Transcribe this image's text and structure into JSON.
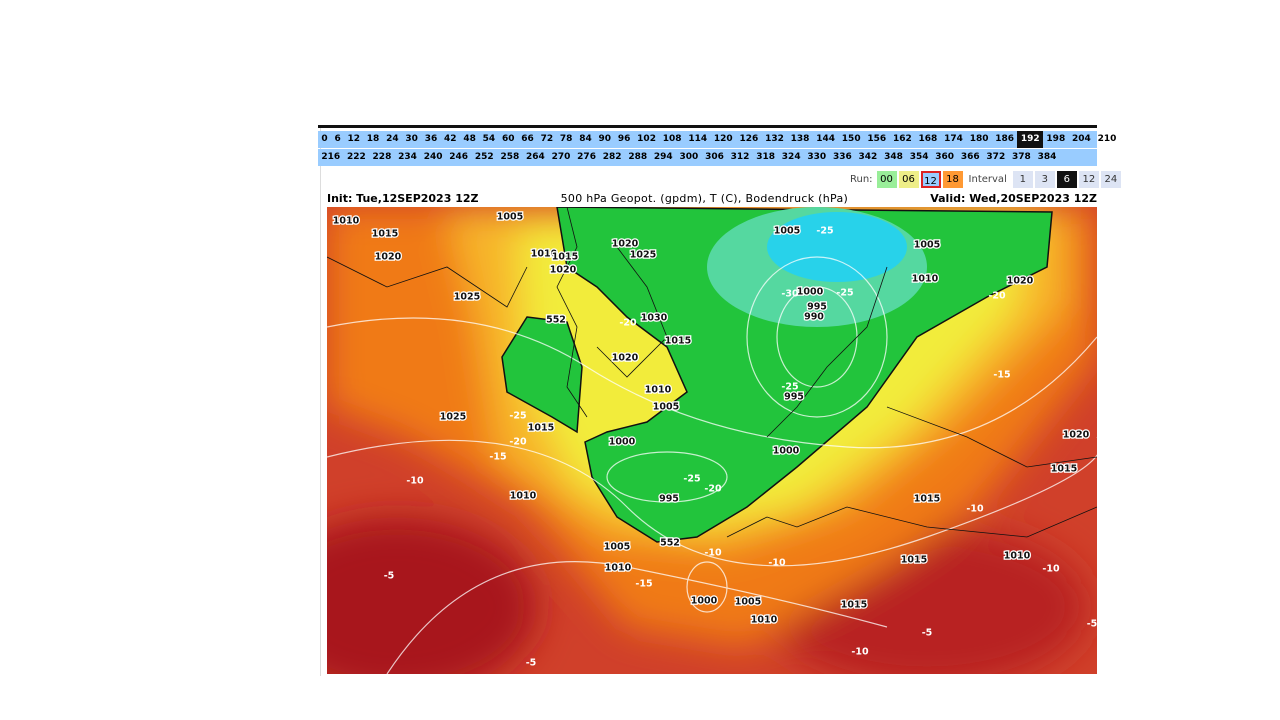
{
  "hours": {
    "row1": [
      {
        "label": "0"
      },
      {
        "label": "6"
      },
      {
        "label": "12"
      },
      {
        "label": "18"
      },
      {
        "label": "24"
      },
      {
        "label": "30"
      },
      {
        "label": "36"
      },
      {
        "label": "42"
      },
      {
        "label": "48"
      },
      {
        "label": "54"
      },
      {
        "label": "60"
      },
      {
        "label": "66"
      },
      {
        "label": "72"
      },
      {
        "label": "78"
      },
      {
        "label": "84"
      },
      {
        "label": "90"
      },
      {
        "label": "96"
      },
      {
        "label": "102"
      },
      {
        "label": "108"
      },
      {
        "label": "114"
      },
      {
        "label": "120"
      },
      {
        "label": "126"
      },
      {
        "label": "132"
      },
      {
        "label": "138"
      },
      {
        "label": "144"
      },
      {
        "label": "150"
      },
      {
        "label": "156"
      },
      {
        "label": "162"
      },
      {
        "label": "168"
      },
      {
        "label": "174"
      },
      {
        "label": "180"
      },
      {
        "label": "186"
      },
      {
        "label": "192",
        "selected": true
      },
      {
        "label": "198"
      },
      {
        "label": "204"
      },
      {
        "label": "210"
      }
    ],
    "row2": [
      {
        "label": "216"
      },
      {
        "label": "222"
      },
      {
        "label": "228"
      },
      {
        "label": "234"
      },
      {
        "label": "240"
      },
      {
        "label": "246"
      },
      {
        "label": "252"
      },
      {
        "label": "258"
      },
      {
        "label": "264"
      },
      {
        "label": "270"
      },
      {
        "label": "276"
      },
      {
        "label": "282"
      },
      {
        "label": "288"
      },
      {
        "label": "294"
      },
      {
        "label": "300"
      },
      {
        "label": "306"
      },
      {
        "label": "312"
      },
      {
        "label": "318"
      },
      {
        "label": "324"
      },
      {
        "label": "330"
      },
      {
        "label": "336"
      },
      {
        "label": "342"
      },
      {
        "label": "348"
      },
      {
        "label": "354"
      },
      {
        "label": "360"
      },
      {
        "label": "366"
      },
      {
        "label": "372"
      },
      {
        "label": "378"
      },
      {
        "label": "384"
      }
    ]
  },
  "run": {
    "label": "Run:",
    "options": [
      {
        "label": "00",
        "color": "#99ee99"
      },
      {
        "label": "06",
        "color": "#eeee88"
      },
      {
        "label": "12",
        "color": "#99ccff",
        "selected": true
      },
      {
        "label": "18",
        "color": "#ff9933"
      }
    ]
  },
  "interval": {
    "label": "Interval",
    "options": [
      {
        "label": "1"
      },
      {
        "label": "3"
      },
      {
        "label": "6",
        "selected": true
      },
      {
        "label": "12"
      },
      {
        "label": "24"
      }
    ]
  },
  "header": {
    "init": "Init: Tue,12SEP2023 12Z",
    "title": "500 hPa Geopot. (gpdm), T (C), Bodendruck (hPa)",
    "valid": "Valid: Wed,20SEP2023 12Z"
  },
  "map": {
    "labels": [
      "1010",
      "1005",
      "1015",
      "1020",
      "1010",
      "1015",
      "1020",
      "1020",
      "1025",
      "1005",
      "-25",
      "1005",
      "1010",
      "1020",
      "-20",
      "1025",
      "552",
      "-20",
      "1030",
      "1000",
      "-30",
      "-25",
      "995",
      "990",
      "1015",
      "1020",
      "-15",
      "1010",
      "1005",
      "-25",
      "995",
      "1025",
      "-25",
      "1015",
      "-20",
      "1000",
      "-15",
      "1000",
      "1020",
      "1015",
      "-25",
      "-10",
      "-20",
      "1010",
      "995",
      "1015",
      "-10",
      "1005",
      "552",
      "-10",
      "1010",
      "-10",
      "1015",
      "-10",
      "1010",
      "-5",
      "-15",
      "1000",
      "1005",
      "1015",
      "1010",
      "-5",
      "-10",
      "-5",
      "-5"
    ]
  }
}
